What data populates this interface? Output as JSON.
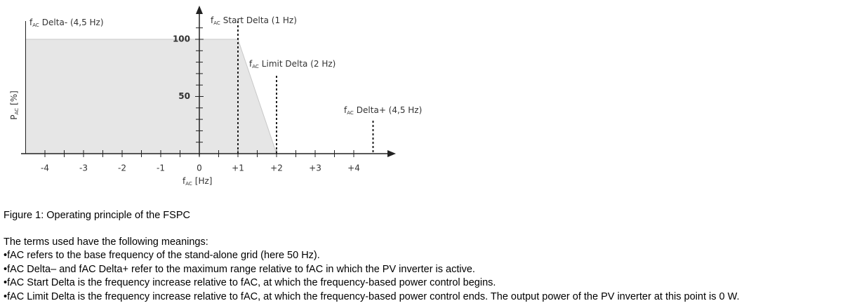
{
  "chart_data": {
    "type": "area",
    "x": [
      -4.5,
      1,
      2
    ],
    "values": [
      100,
      100,
      0
    ],
    "color": "#e6e6e6",
    "line_color": "#c8c8c8",
    "xlim": [
      -4.5,
      5
    ],
    "ylim": [
      0,
      128
    ],
    "xticks": [
      -4,
      -3,
      -2,
      -1,
      0,
      {
        "value": 1,
        "label": "+1"
      },
      {
        "value": 2,
        "label": "+2"
      },
      {
        "value": 3,
        "label": "+3"
      },
      {
        "value": 4,
        "label": "+4"
      }
    ],
    "xminorticks": [
      -3.5,
      -2.5,
      -1.5,
      -0.5,
      0.5,
      1.5,
      2.5,
      3.5
    ],
    "yticks": [
      50,
      100
    ],
    "yminorticks": [
      10,
      20,
      30,
      40,
      60,
      70,
      80,
      90,
      110
    ],
    "xlabel": {
      "symbol": "f",
      "sub": "AC",
      "text": "[Hz]"
    },
    "ylabel": {
      "symbol": "P",
      "sub": "AC",
      "text": "[%]"
    },
    "annotations": [
      {
        "x": -4.5,
        "symbol": "f",
        "sub": "AC",
        "text": "Delta- (4,5 Hz)"
      },
      {
        "x": 1,
        "symbol": "f",
        "sub": "AC",
        "text": "Start Delta (1 Hz)"
      },
      {
        "x": 2,
        "symbol": "f",
        "sub": "AC",
        "text": "Limit Delta (2 Hz)"
      },
      {
        "x": 4.5,
        "symbol": "f",
        "sub": "AC",
        "text": "Delta+ (4,5 Hz)"
      }
    ]
  },
  "document": {
    "caption": "Figure 1: Operating principle of the FSPC",
    "intro": "The terms used have the following meanings:",
    "bullets": [
      "•fAC refers to the base frequency of the stand-alone grid (here 50 Hz).",
      "•fAC Delta– and fAC Delta+ refer to the maximum range relative to fAC in which the PV inverter is active.",
      "•fAC Start Delta is the frequency increase relative to fAC, at which the frequency-based power control begins.",
      "•fAC Limit Delta is the frequency increase relative to fAC, at which the frequency-based power control ends. The output power of the PV inverter at this point is 0 W."
    ]
  }
}
